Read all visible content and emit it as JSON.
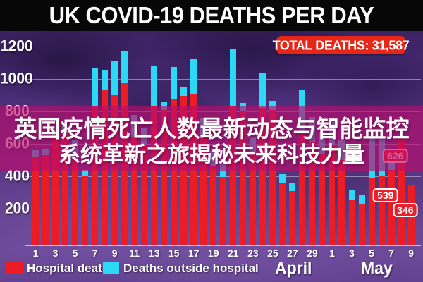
{
  "title": "UK COVID-19 DEATHS PER DAY",
  "badge": {
    "label": "TOTAL DEATHS: 31,587"
  },
  "overlay": {
    "line1": "英国疫情死亡人数最新动态与智能监控",
    "line2": "系统革新之旅揭秘未来科技力量"
  },
  "legend": [
    {
      "label": "Hospital deaths",
      "color": "#ec1c24"
    },
    {
      "label": "Deaths outside hospital",
      "color": "#2bd8f5"
    }
  ],
  "months": [
    {
      "label": "April"
    },
    {
      "label": "May"
    }
  ],
  "colors": {
    "hospital_bar": "#ec1c24",
    "outside_bar": "#2bd8f5",
    "badge_red": "#e62718",
    "overlay_magenta": "#ba0c6c",
    "background_purple": "#5d3f8e",
    "title_bg": "#070707"
  },
  "chart_data": {
    "type": "bar",
    "stacked": true,
    "title": "UK COVID-19 DEATHS PER DAY",
    "total_deaths": "31,587",
    "xlabel": "",
    "ylabel": "",
    "ylim": [
      0,
      1300
    ],
    "yticks": [
      200,
      400,
      600,
      800,
      1000,
      1200
    ],
    "grid": true,
    "legend_position": "bottom",
    "x": [
      "Apr 1",
      "Apr 2",
      "Apr 3",
      "Apr 4",
      "Apr 5",
      "Apr 6",
      "Apr 7",
      "Apr 8",
      "Apr 9",
      "Apr 10",
      "Apr 11",
      "Apr 12",
      "Apr 13",
      "Apr 14",
      "Apr 15",
      "Apr 16",
      "Apr 17",
      "Apr 18",
      "Apr 19",
      "Apr 20",
      "Apr 21",
      "Apr 22",
      "Apr 23",
      "Apr 24",
      "Apr 25",
      "Apr 26",
      "Apr 27",
      "Apr 28",
      "Apr 29",
      "Apr 30",
      "May 1",
      "May 2",
      "May 3",
      "May 4",
      "May 5",
      "May 6",
      "May 7",
      "May 8",
      "May 9"
    ],
    "tick_labels": [
      "1",
      "3",
      "5",
      "7",
      "9",
      "11",
      "13",
      "15",
      "17",
      "19",
      "21",
      "23",
      "25",
      "27",
      "29",
      "1",
      "3",
      "5",
      "7",
      "9"
    ],
    "series": [
      {
        "name": "Hospital deaths",
        "color": "#ec1c24",
        "values": [
          520,
          530,
          640,
          660,
          505,
          405,
          835,
          930,
          900,
          975,
          640,
          590,
          835,
          810,
          875,
          895,
          910,
          640,
          460,
          395,
          835,
          800,
          540,
          820,
          810,
          355,
          310,
          680,
          615,
          540,
          590,
          500,
          255,
          230,
          390,
          400,
          440,
          626,
          346
        ]
      },
      {
        "name": "Deaths outside hospital",
        "color": "#2bd8f5",
        "values": [
          43,
          39,
          44,
          48,
          115,
          34,
          230,
          125,
          210,
          195,
          140,
          110,
          245,
          48,
          200,
          55,
          210,
          120,
          100,
          80,
          352,
          53,
          100,
          218,
          56,
          58,
          50,
          250,
          150,
          134,
          149,
          121,
          60,
          58,
          260,
          240,
          99,
          0,
          0
        ]
      }
    ],
    "annotations": [
      {
        "label": "626",
        "day": "May 8",
        "index": 37
      },
      {
        "label": "539",
        "day": "May 7",
        "index": 36
      },
      {
        "label": "346",
        "day": "May 9",
        "index": 38
      }
    ]
  }
}
